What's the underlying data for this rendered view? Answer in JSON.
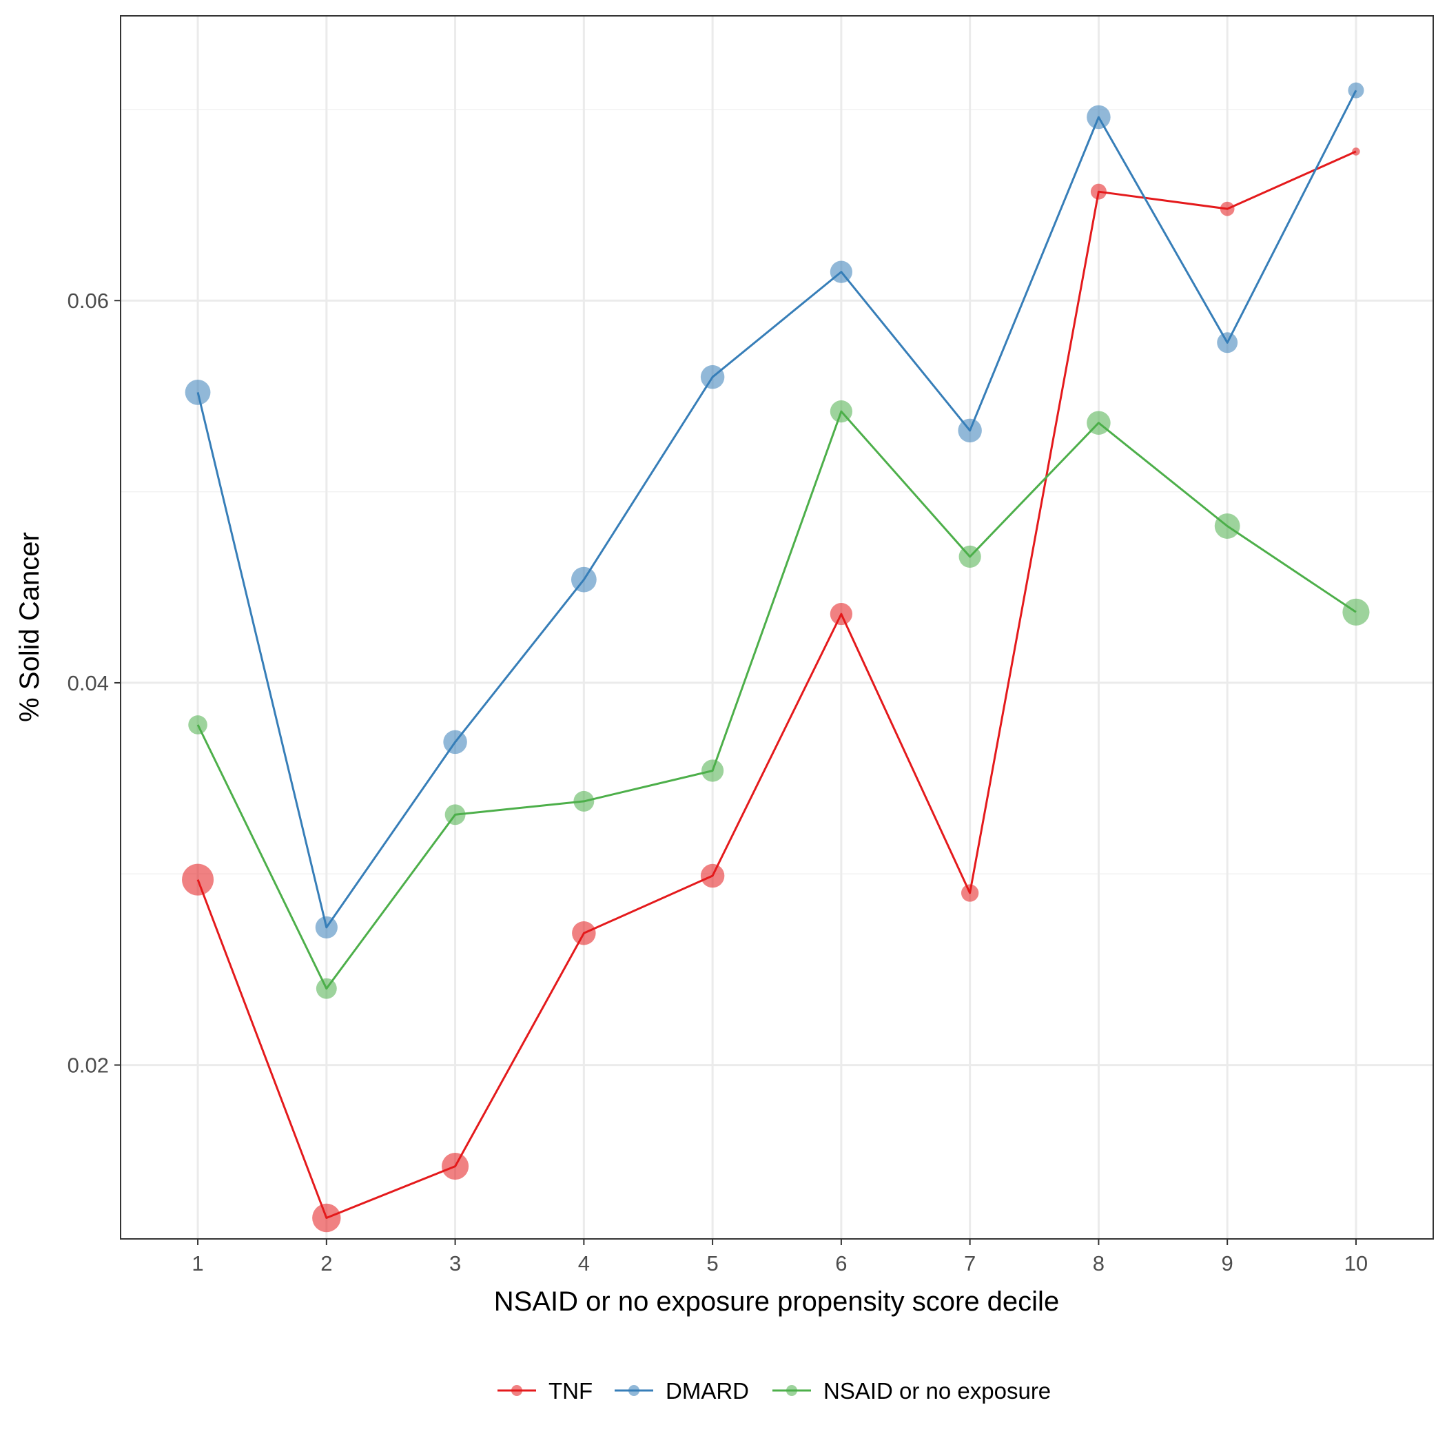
{
  "chart_data": {
    "type": "line",
    "title": "",
    "xlabel": "NSAID or no exposure propensity score decile",
    "ylabel": "% Solid Cancer",
    "x": [
      1,
      2,
      3,
      4,
      5,
      6,
      7,
      8,
      9,
      10
    ],
    "xlim": [
      0.4,
      10.6
    ],
    "ylim": [
      0.0109,
      0.0749
    ],
    "yticks": [
      0.02,
      0.04,
      0.06
    ],
    "ytick_labels": [
      "0.02",
      "0.04",
      "0.06"
    ],
    "grid": true,
    "legend_position": "bottom",
    "series": [
      {
        "name": "TNF",
        "color": "#E41A1C",
        "values": [
          0.0297,
          0.012,
          0.0147,
          0.0269,
          0.0299,
          0.0436,
          0.029,
          0.0657,
          0.0648,
          0.0678
        ],
        "point_size": [
          10,
          9,
          8.5,
          7.5,
          7.5,
          7,
          5.5,
          5,
          4.5,
          2.5
        ]
      },
      {
        "name": "DMARD",
        "color": "#377EB8",
        "values": [
          0.0552,
          0.0272,
          0.0369,
          0.0454,
          0.056,
          0.0615,
          0.0532,
          0.0696,
          0.0578,
          0.071
        ],
        "point_size": [
          8,
          7,
          7.5,
          8,
          7.5,
          7,
          7.5,
          7.5,
          6.5,
          5
        ]
      },
      {
        "name": "NSAID or no exposure",
        "color": "#4DAF4A",
        "values": [
          0.0378,
          0.024,
          0.0331,
          0.0338,
          0.0354,
          0.0542,
          0.0466,
          0.0536,
          0.0482,
          0.0437
        ],
        "point_size": [
          6,
          6.5,
          6.5,
          6.5,
          7,
          7,
          7,
          7.5,
          8,
          8.5
        ]
      }
    ]
  }
}
